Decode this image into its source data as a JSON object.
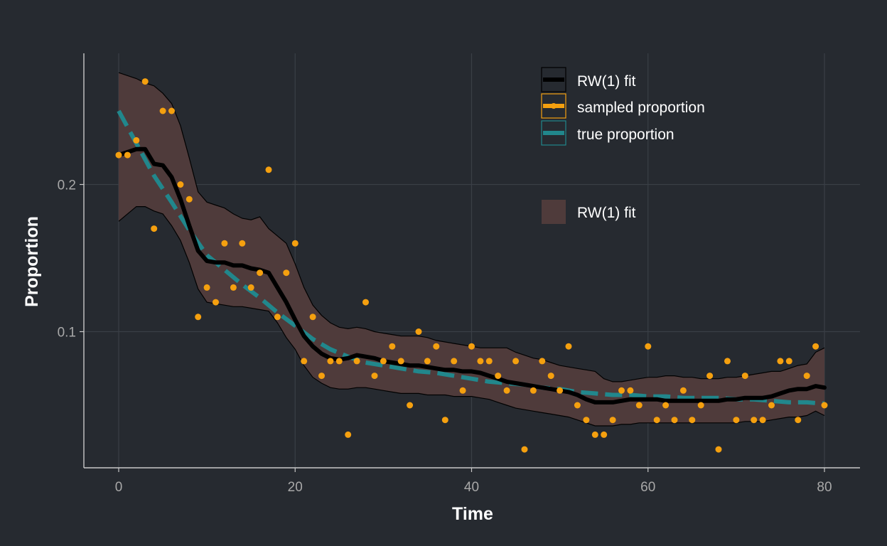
{
  "chart_data": {
    "type": "line",
    "title": "",
    "xlabel": "Time",
    "ylabel": "Proportion",
    "xlim": [
      -4,
      84
    ],
    "ylim": [
      0.0095,
      0.2855
    ],
    "x_ticks": [
      0,
      20,
      40,
      60,
      80
    ],
    "x_tick_labels": [
      "0",
      "20",
      "40",
      "60",
      "80"
    ],
    "y_ticks": [
      0.1,
      0.2
    ],
    "y_tick_labels": [
      "0.1",
      "0.2"
    ],
    "grid": true,
    "legend_position": "top-right",
    "legend": {
      "lines": [
        {
          "label": "RW(1) fit",
          "color": "#000000",
          "style": "solid"
        },
        {
          "label": "sampled proportion",
          "color": "#f5a00f",
          "style": "points"
        },
        {
          "label": "true proportion",
          "color": "#21878c",
          "style": "dashed"
        }
      ],
      "fill": [
        {
          "label": "RW(1) fit",
          "color": "#4f3b3b"
        }
      ]
    },
    "colors": {
      "background": "#262a30",
      "grid": "#3a3f46",
      "axis": "#c8c8c8",
      "tick_label": "#a8a8a8",
      "label": "#ffffff",
      "ribbon": "#4f3b3b",
      "fit": "#000000",
      "points": "#f5a00f",
      "truth": "#21878c"
    },
    "series": [
      {
        "name": "sampled proportion",
        "kind": "points",
        "x": [
          0,
          1,
          2,
          3,
          4,
          5,
          6,
          7,
          8,
          9,
          10,
          11,
          12,
          13,
          14,
          15,
          16,
          17,
          18,
          19,
          20,
          21,
          22,
          23,
          24,
          25,
          26,
          27,
          28,
          29,
          30,
          31,
          32,
          33,
          34,
          35,
          36,
          37,
          38,
          39,
          40,
          41,
          42,
          43,
          44,
          45,
          46,
          47,
          48,
          49,
          50,
          51,
          52,
          53,
          54,
          55,
          56,
          57,
          58,
          59,
          60,
          61,
          62,
          63,
          64,
          65,
          66,
          67,
          68,
          69,
          70,
          71,
          72,
          73,
          74,
          75,
          76,
          77,
          78,
          79,
          80
        ],
        "y": [
          0.22,
          0.22,
          0.23,
          0.27,
          0.17,
          0.25,
          0.25,
          0.2,
          0.19,
          0.11,
          0.13,
          0.12,
          0.16,
          0.13,
          0.16,
          0.13,
          0.14,
          0.21,
          0.11,
          0.14,
          0.16,
          0.08,
          0.11,
          0.07,
          0.08,
          0.08,
          0.03,
          0.08,
          0.12,
          0.07,
          0.08,
          0.09,
          0.08,
          0.05,
          0.1,
          0.08,
          0.09,
          0.04,
          0.08,
          0.06,
          0.09,
          0.08,
          0.08,
          0.07,
          0.06,
          0.08,
          0.02,
          0.06,
          0.08,
          0.07,
          0.06,
          0.09,
          0.05,
          0.04,
          0.03,
          0.03,
          0.04,
          0.06,
          0.06,
          0.05,
          0.09,
          0.04,
          0.05,
          0.04,
          0.06,
          0.04,
          0.05,
          0.07,
          0.02,
          0.08,
          0.04,
          0.07,
          0.04,
          0.04,
          0.05,
          0.08,
          0.08,
          0.04,
          0.07,
          0.09,
          0.05
        ]
      },
      {
        "name": "RW(1) fit",
        "kind": "line",
        "x": [
          0,
          1,
          2,
          3,
          4,
          5,
          6,
          7,
          8,
          9,
          10,
          11,
          12,
          13,
          14,
          15,
          16,
          17,
          18,
          19,
          20,
          21,
          22,
          23,
          24,
          25,
          26,
          27,
          28,
          29,
          30,
          31,
          32,
          33,
          34,
          35,
          36,
          37,
          38,
          39,
          40,
          41,
          42,
          43,
          44,
          45,
          46,
          47,
          48,
          49,
          50,
          51,
          52,
          53,
          54,
          55,
          56,
          57,
          58,
          59,
          60,
          61,
          62,
          63,
          64,
          65,
          66,
          67,
          68,
          69,
          70,
          71,
          72,
          73,
          74,
          75,
          76,
          77,
          78,
          79,
          80
        ],
        "y": [
          0.22,
          0.222,
          0.224,
          0.224,
          0.214,
          0.213,
          0.205,
          0.19,
          0.172,
          0.155,
          0.148,
          0.147,
          0.147,
          0.145,
          0.145,
          0.143,
          0.142,
          0.14,
          0.13,
          0.12,
          0.108,
          0.097,
          0.09,
          0.085,
          0.082,
          0.081,
          0.082,
          0.084,
          0.083,
          0.082,
          0.08,
          0.079,
          0.078,
          0.077,
          0.077,
          0.076,
          0.075,
          0.074,
          0.074,
          0.073,
          0.073,
          0.072,
          0.07,
          0.068,
          0.066,
          0.065,
          0.064,
          0.063,
          0.062,
          0.061,
          0.06,
          0.059,
          0.057,
          0.054,
          0.052,
          0.052,
          0.052,
          0.053,
          0.054,
          0.054,
          0.054,
          0.054,
          0.053,
          0.053,
          0.053,
          0.053,
          0.053,
          0.053,
          0.053,
          0.054,
          0.054,
          0.055,
          0.055,
          0.055,
          0.056,
          0.058,
          0.06,
          0.061,
          0.061,
          0.063,
          0.062
        ]
      },
      {
        "name": "RW(1) fit",
        "kind": "ribbon",
        "x": [
          0,
          2,
          3,
          4,
          5,
          6,
          7,
          8,
          9,
          10,
          11,
          12,
          13,
          14,
          15,
          16,
          17,
          18,
          19,
          20,
          21,
          22,
          23,
          24,
          25,
          26,
          27,
          28,
          29,
          30,
          31,
          32,
          33,
          34,
          35,
          36,
          37,
          38,
          39,
          40,
          41,
          42,
          43,
          44,
          45,
          46,
          47,
          48,
          49,
          50,
          51,
          52,
          53,
          54,
          55,
          56,
          57,
          58,
          59,
          60,
          61,
          62,
          63,
          64,
          65,
          66,
          67,
          68,
          69,
          70,
          71,
          72,
          73,
          74,
          75,
          76,
          77,
          78,
          79,
          80
        ],
        "lower": [
          0.175,
          0.185,
          0.185,
          0.182,
          0.18,
          0.172,
          0.162,
          0.147,
          0.129,
          0.12,
          0.119,
          0.118,
          0.117,
          0.117,
          0.116,
          0.115,
          0.114,
          0.106,
          0.096,
          0.088,
          0.077,
          0.069,
          0.065,
          0.062,
          0.061,
          0.061,
          0.062,
          0.062,
          0.061,
          0.06,
          0.059,
          0.058,
          0.058,
          0.058,
          0.057,
          0.057,
          0.057,
          0.056,
          0.056,
          0.056,
          0.055,
          0.054,
          0.052,
          0.05,
          0.048,
          0.047,
          0.046,
          0.045,
          0.044,
          0.043,
          0.042,
          0.04,
          0.038,
          0.036,
          0.036,
          0.036,
          0.037,
          0.037,
          0.038,
          0.038,
          0.038,
          0.038,
          0.038,
          0.038,
          0.038,
          0.038,
          0.038,
          0.038,
          0.038,
          0.038,
          0.039,
          0.039,
          0.039,
          0.04,
          0.041,
          0.042,
          0.042,
          0.043,
          0.046,
          0.043
        ],
        "upper": [
          0.276,
          0.272,
          0.269,
          0.267,
          0.262,
          0.255,
          0.24,
          0.218,
          0.195,
          0.188,
          0.186,
          0.184,
          0.18,
          0.177,
          0.176,
          0.178,
          0.17,
          0.165,
          0.16,
          0.146,
          0.13,
          0.118,
          0.111,
          0.106,
          0.103,
          0.102,
          0.103,
          0.102,
          0.1,
          0.099,
          0.098,
          0.097,
          0.097,
          0.097,
          0.096,
          0.094,
          0.093,
          0.092,
          0.091,
          0.09,
          0.089,
          0.089,
          0.089,
          0.089,
          0.086,
          0.084,
          0.082,
          0.081,
          0.079,
          0.077,
          0.076,
          0.075,
          0.074,
          0.073,
          0.068,
          0.066,
          0.066,
          0.067,
          0.068,
          0.069,
          0.069,
          0.07,
          0.07,
          0.069,
          0.069,
          0.068,
          0.068,
          0.068,
          0.069,
          0.069,
          0.07,
          0.071,
          0.072,
          0.073,
          0.073,
          0.075,
          0.077,
          0.078,
          0.086,
          0.089
        ]
      },
      {
        "name": "true proportion",
        "kind": "line",
        "x": [
          0,
          2,
          4,
          6,
          8,
          10,
          12,
          14,
          16,
          18,
          20,
          22,
          24,
          26,
          28,
          30,
          32,
          34,
          36,
          38,
          40,
          42,
          44,
          46,
          48,
          50,
          52,
          54,
          56,
          58,
          60,
          62,
          64,
          66,
          68,
          70,
          72,
          74,
          76,
          78,
          80
        ],
        "y": [
          0.25,
          0.228,
          0.206,
          0.188,
          0.169,
          0.152,
          0.142,
          0.132,
          0.123,
          0.113,
          0.104,
          0.095,
          0.088,
          0.083,
          0.079,
          0.077,
          0.075,
          0.073,
          0.072,
          0.07,
          0.068,
          0.066,
          0.065,
          0.064,
          0.062,
          0.061,
          0.059,
          0.058,
          0.057,
          0.057,
          0.056,
          0.056,
          0.055,
          0.055,
          0.055,
          0.054,
          0.054,
          0.053,
          0.052,
          0.052,
          0.051
        ]
      }
    ]
  }
}
